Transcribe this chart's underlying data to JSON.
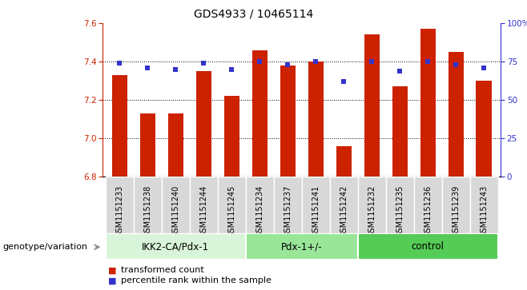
{
  "title": "GDS4933 / 10465114",
  "samples": [
    "GSM1151233",
    "GSM1151238",
    "GSM1151240",
    "GSM1151244",
    "GSM1151245",
    "GSM1151234",
    "GSM1151237",
    "GSM1151241",
    "GSM1151242",
    "GSM1151232",
    "GSM1151235",
    "GSM1151236",
    "GSM1151239",
    "GSM1151243"
  ],
  "bar_values": [
    7.33,
    7.13,
    7.13,
    7.35,
    7.22,
    7.46,
    7.38,
    7.4,
    6.96,
    7.54,
    7.27,
    7.57,
    7.45,
    7.3
  ],
  "percentile_values": [
    74,
    71,
    70,
    74,
    70,
    75,
    73,
    75,
    62,
    75,
    69,
    75,
    73,
    71
  ],
  "ylim_left": [
    6.8,
    7.6
  ],
  "ylim_right": [
    0,
    100
  ],
  "yticks_left": [
    6.8,
    7.0,
    7.2,
    7.4,
    7.6
  ],
  "yticks_right": [
    0,
    25,
    50,
    75,
    100
  ],
  "bar_color": "#cc2200",
  "percentile_color": "#3333cc",
  "bar_bottom": 6.8,
  "bar_width": 0.55,
  "groups": [
    {
      "label": "IKK2-CA/Pdx-1",
      "start": 0,
      "end": 5,
      "color": "#d9f5d9"
    },
    {
      "label": "Pdx-1+/-",
      "start": 5,
      "end": 9,
      "color": "#99e699"
    },
    {
      "label": "control",
      "start": 9,
      "end": 14,
      "color": "#55cc55"
    }
  ],
  "legend_red": "transformed count",
  "legend_blue": "percentile rank within the sample",
  "genotype_label": "genotype/variation",
  "title_fontsize": 10,
  "axis_fontsize": 8,
  "tick_fontsize": 7.5,
  "sample_fontsize": 7
}
